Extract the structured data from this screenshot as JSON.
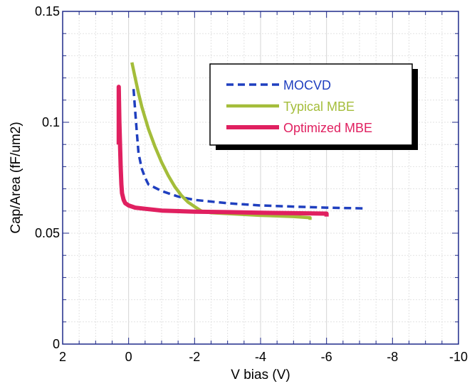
{
  "chart_data": {
    "type": "line",
    "xlabel": "V bias (V)",
    "ylabel": "Cap/Area (fF/um2)",
    "xlim": [
      2,
      -10
    ],
    "ylim": [
      0,
      0.15
    ],
    "x_reversed": true,
    "grid": true,
    "legend_position": "top-right",
    "x_ticks": [
      2,
      0,
      -2,
      -4,
      -6,
      -8,
      -10
    ],
    "x_tick_labels": [
      "2",
      "0",
      "-2",
      "-4",
      "-6",
      "-8",
      "-10"
    ],
    "y_ticks": [
      0,
      0.05,
      0.1,
      0.15
    ],
    "y_tick_labels": [
      "0",
      "0.05",
      "0.1",
      "0.15"
    ],
    "series": [
      {
        "name": "MOCVD",
        "color": "#1f3fbf",
        "style": "dashed",
        "x": [
          -0.15,
          -0.2,
          -0.25,
          -0.3,
          -0.4,
          -0.5,
          -0.6,
          -0.8,
          -1.0,
          -1.5,
          -2,
          -3,
          -4,
          -5,
          -6,
          -7.1
        ],
        "y": [
          0.115,
          0.105,
          0.095,
          0.086,
          0.079,
          0.075,
          0.072,
          0.0705,
          0.069,
          0.0665,
          0.065,
          0.0635,
          0.0625,
          0.062,
          0.0615,
          0.0612
        ]
      },
      {
        "name": "Typical MBE",
        "color": "#a4bd3a",
        "style": "solid",
        "x": [
          -0.1,
          -0.2,
          -0.3,
          -0.4,
          -0.5,
          -0.6,
          -0.8,
          -1.0,
          -1.2,
          -1.4,
          -1.6,
          -1.8,
          -2.0,
          -2.2,
          -2.5,
          -3,
          -4,
          -5,
          -5.5,
          -5.5
        ],
        "y": [
          0.127,
          0.12,
          0.113,
          0.107,
          0.102,
          0.097,
          0.089,
          0.082,
          0.076,
          0.071,
          0.067,
          0.064,
          0.062,
          0.06,
          0.0592,
          0.0588,
          0.058,
          0.0575,
          0.057,
          0.056
        ]
      },
      {
        "name": "Optimized MBE",
        "color": "#e02060",
        "style": "solid",
        "x": [
          0.3,
          0.3,
          0.3,
          0.28,
          0.26,
          0.24,
          0.22,
          0.2,
          0.15,
          0.1,
          0.0,
          -0.2,
          -0.5,
          -1,
          -2,
          -3,
          -4,
          -5,
          -6,
          -6
        ],
        "y": [
          0.09,
          0.1,
          0.116,
          0.1,
          0.09,
          0.08,
          0.072,
          0.068,
          0.065,
          0.0635,
          0.0625,
          0.0615,
          0.061,
          0.0602,
          0.0597,
          0.0595,
          0.0592,
          0.059,
          0.0588,
          0.0575
        ]
      }
    ]
  }
}
